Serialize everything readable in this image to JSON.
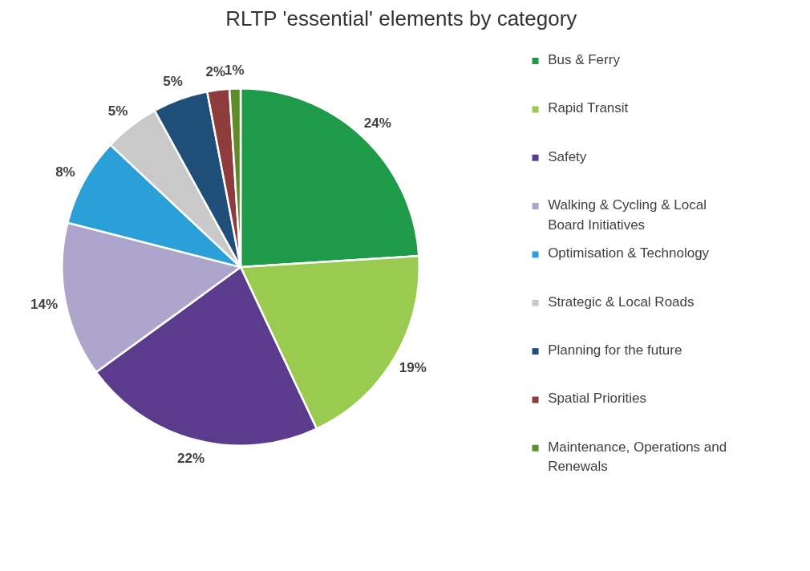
{
  "chart_data": {
    "type": "pie",
    "title": "RLTP 'essential' elements by category",
    "categories": [
      "Bus & Ferry",
      "Rapid Transit",
      "Safety",
      "Walking & Cycling & Local Board Initiatives",
      "Optimisation & Technology",
      "Strategic & Local Roads",
      "Planning for the future",
      "Spatial Priorities",
      "Maintenance, Operations and Renewals"
    ],
    "values": [
      24,
      19,
      22,
      14,
      8,
      5,
      5,
      2,
      1
    ],
    "value_labels": [
      "24%",
      "19%",
      "22%",
      "14%",
      "8%",
      "5%",
      "5%",
      "2%",
      "1%"
    ],
    "colors": [
      "#1f9a48",
      "#9acb50",
      "#5b3b8c",
      "#ada5cc",
      "#2a9fd8",
      "#c9c9c9",
      "#1f4e79",
      "#8e3b3b",
      "#5e8c2a"
    ],
    "legend": "right"
  }
}
